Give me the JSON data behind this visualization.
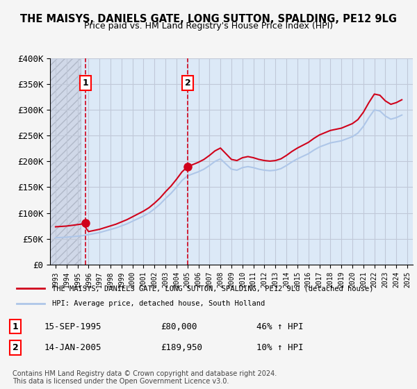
{
  "title": "THE MAISYS, DANIELS GATE, LONG SUTTON, SPALDING, PE12 9LG",
  "subtitle": "Price paid vs. HM Land Registry's House Price Index (HPI)",
  "legend_line1": "THE MAISYS, DANIELS GATE, LONG SUTTON, SPALDING, PE12 9LG (detached house)",
  "legend_line2": "HPI: Average price, detached house, South Holland",
  "transaction1_date": 1995.71,
  "transaction1_price": 80000,
  "transaction1_label": "1",
  "transaction1_date_str": "15-SEP-1995",
  "transaction1_price_str": "£80,000",
  "transaction1_hpi": "46% ↑ HPI",
  "transaction2_date": 2005.04,
  "transaction2_price": 189950,
  "transaction2_label": "2",
  "transaction2_date_str": "14-JAN-2005",
  "transaction2_price_str": "£189,950",
  "transaction2_hpi": "10% ↑ HPI",
  "hpi_color": "#aec6e8",
  "property_color": "#d0021b",
  "ylabel_color": "#000000",
  "background_color": "#dce9f7",
  "plot_bg_color": "#ffffff",
  "grid_color": "#c0c8d8",
  "hatch_color": "#c0c0c0",
  "footnote": "Contains HM Land Registry data © Crown copyright and database right 2024.\nThis data is licensed under the Open Government Licence v3.0.",
  "ylim": [
    0,
    400000
  ],
  "yticks": [
    0,
    50000,
    100000,
    150000,
    200000,
    250000,
    300000,
    350000,
    400000
  ],
  "ytick_labels": [
    "£0",
    "£50K",
    "£100K",
    "£150K",
    "£200K",
    "£250K",
    "£300K",
    "£350K",
    "£400K"
  ],
  "xlim_left": 1992.5,
  "xlim_right": 2025.5,
  "hatch_end": 1995.3
}
